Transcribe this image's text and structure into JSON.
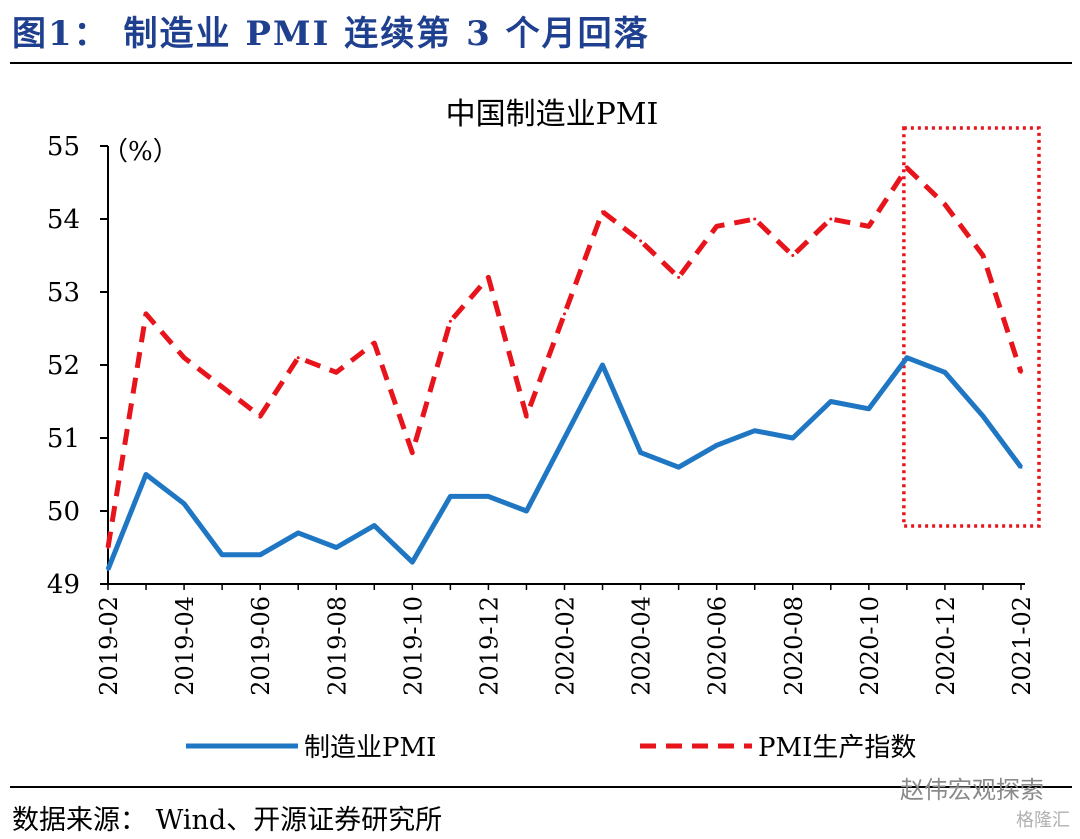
{
  "figure_title": "图1：  制造业 PMI 连续第 3 个月回落",
  "source_text": "数据来源：  Wind、开源证券研究所",
  "watermark": "赵伟宏观探索",
  "watermark_brand": "格隆汇",
  "chart_data": {
    "type": "line",
    "title": "中国制造业PMI",
    "unit_label": "（%）",
    "ylim": [
      49,
      55
    ],
    "yticks": [
      49,
      50,
      51,
      52,
      53,
      54,
      55
    ],
    "x": [
      "2019-02",
      "2019-03",
      "2019-04",
      "2019-05",
      "2019-06",
      "2019-07",
      "2019-08",
      "2019-09",
      "2019-10",
      "2019-11",
      "2019-12",
      "2020-01",
      "2020-02",
      "2020-03",
      "2020-04",
      "2020-05",
      "2020-06",
      "2020-07",
      "2020-08",
      "2020-09",
      "2020-10",
      "2020-11",
      "2020-12",
      "2021-01",
      "2021-02"
    ],
    "xticks": [
      "2019-02",
      "2019-04",
      "2019-06",
      "2019-08",
      "2019-10",
      "2019-12",
      "2020-02",
      "2020-04",
      "2020-06",
      "2020-08",
      "2020-10",
      "2020-12",
      "2021-02"
    ],
    "series": [
      {
        "name": "制造业PMI",
        "color": "#1f77c4",
        "style": "solid",
        "values": [
          49.2,
          50.5,
          50.1,
          49.4,
          49.4,
          49.7,
          49.5,
          49.8,
          49.3,
          50.2,
          50.2,
          50.0,
          51.0,
          52.0,
          50.8,
          50.6,
          50.9,
          51.1,
          51.0,
          51.5,
          51.4,
          52.1,
          51.9,
          51.3,
          50.6
        ]
      },
      {
        "name": "PMI生产指数",
        "color": "#e8141c",
        "style": "dashed",
        "values": [
          49.5,
          52.7,
          52.1,
          51.7,
          51.3,
          52.1,
          51.9,
          52.3,
          50.8,
          52.6,
          53.2,
          51.3,
          52.7,
          54.1,
          53.7,
          53.2,
          53.9,
          54.0,
          53.5,
          54.0,
          53.9,
          54.7,
          54.2,
          53.5,
          51.9
        ]
      }
    ],
    "highlight": {
      "from": "2020-11",
      "to": "2021-02",
      "color": "#e8141c",
      "style": "dotted"
    },
    "grid": false,
    "legend_position": "bottom"
  }
}
